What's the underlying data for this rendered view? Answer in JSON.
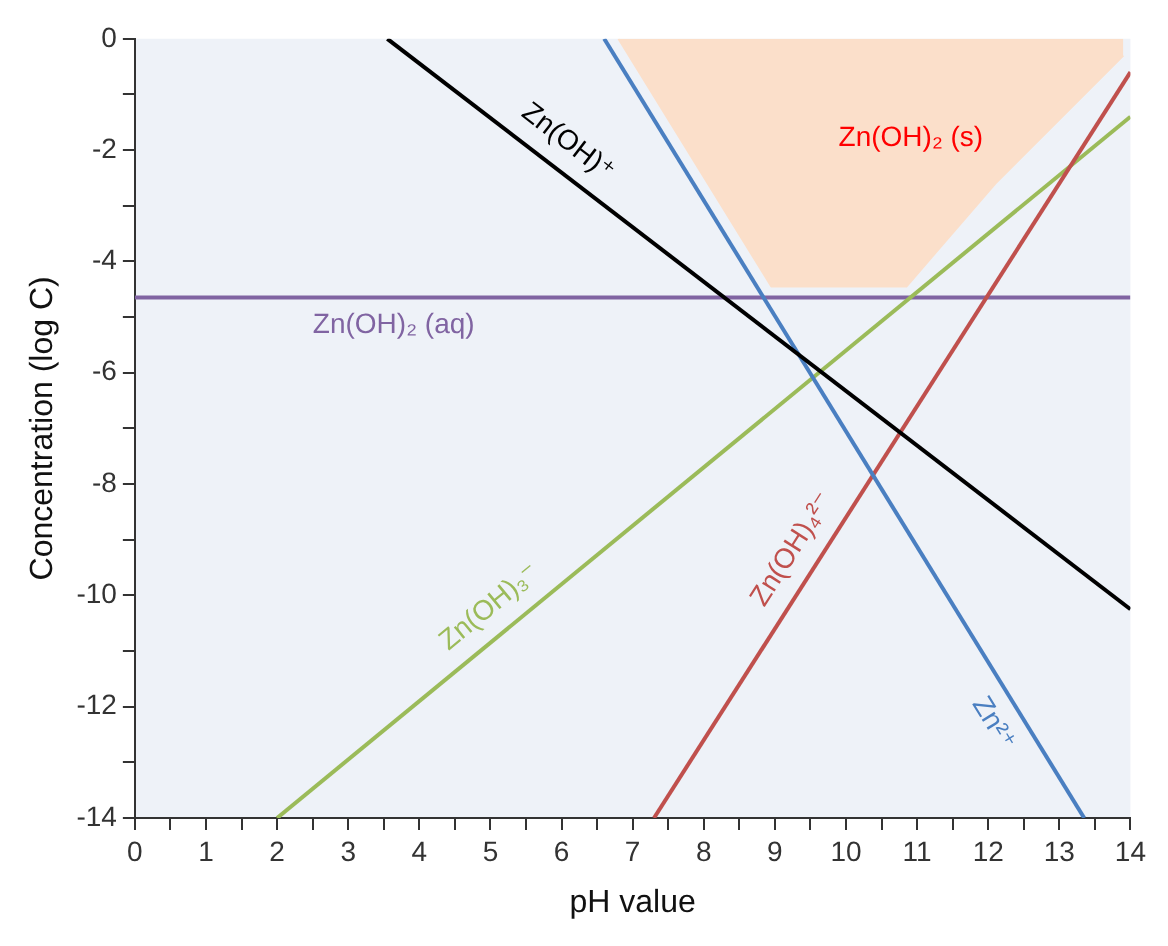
{
  "chart_data": {
    "type": "line",
    "xlabel": "pH value",
    "ylabel": "Concentration (log C)",
    "xlim": [
      0,
      14
    ],
    "ylim": [
      -14,
      0
    ],
    "xticks": [
      0,
      {
        "value": 0.5,
        "label": null
      },
      1,
      {
        "value": 1.5,
        "label": null
      },
      2,
      {
        "value": 2.5,
        "label": null
      },
      3,
      {
        "value": 3.5,
        "label": null
      },
      4,
      {
        "value": 4.5,
        "label": null
      },
      5,
      {
        "value": 5.5,
        "label": null
      },
      6,
      {
        "value": 6.5,
        "label": null
      },
      7,
      {
        "value": 7.5,
        "label": null
      },
      8,
      {
        "value": 8.5,
        "label": null
      },
      9,
      {
        "value": 9.5,
        "label": null
      },
      10,
      {
        "value": 10.5,
        "label": null
      },
      11,
      {
        "value": 11.5,
        "label": null
      },
      12,
      {
        "value": 12.5,
        "label": null
      },
      13,
      {
        "value": 13.5,
        "label": null
      },
      14
    ],
    "yticks": [
      -14,
      {
        "value": -13,
        "label": null
      },
      -12,
      {
        "value": -11,
        "label": null
      },
      -10,
      {
        "value": -9,
        "label": null
      },
      -8,
      {
        "value": -7,
        "label": null
      },
      -6,
      {
        "value": -5,
        "label": null
      },
      -4,
      {
        "value": -3,
        "label": null
      },
      -2,
      {
        "value": -1,
        "label": null
      },
      0
    ],
    "grid": false,
    "legend": false,
    "marker": "none",
    "line_style": "solid",
    "series": [
      {
        "name": "Zn(OH)₂ (s)",
        "type": "area",
        "color": "#fbdfca",
        "x": [
          6.8,
          8.95,
          10.85,
          12.1,
          13.9
        ],
        "values": [
          0,
          -4.45,
          -4.45,
          -2.6,
          -0.3
        ]
      },
      {
        "name": "Zn(OH)⁺",
        "color": "#000000",
        "x": [
          3.55,
          14
        ],
        "values": [
          0,
          -10.25
        ]
      },
      {
        "name": "Zn²⁺",
        "color": "#4a7fc1",
        "x": [
          6.6,
          13.35
        ],
        "values": [
          0,
          -14
        ]
      },
      {
        "name": "Zn(OH)₄²⁻",
        "color": "#c0504d",
        "x": [
          7.3,
          14
        ],
        "values": [
          -14,
          -0.6
        ]
      },
      {
        "name": "Zn(OH)₃⁻",
        "color": "#9bbb59",
        "x": [
          2.0,
          14
        ],
        "values": [
          -14,
          -1.4
        ]
      },
      {
        "name": "Zn(OH)₂ (aq)",
        "color": "#8064a2",
        "x": [
          0,
          14
        ],
        "values": [
          -4.65,
          -4.65
        ]
      }
    ]
  }
}
